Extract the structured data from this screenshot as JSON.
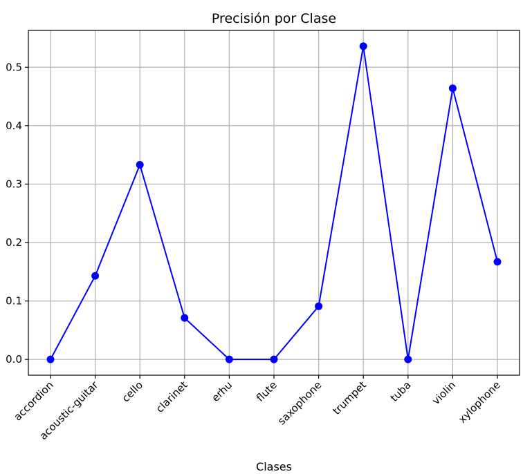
{
  "chart_data": {
    "type": "line",
    "title": "Precisión por Clase",
    "xlabel": "Clases",
    "ylabel": "",
    "categories": [
      "accordion",
      "acoustic-guitar",
      "cello",
      "clarinet",
      "erhu",
      "flute",
      "saxophone",
      "trumpet",
      "tuba",
      "violin",
      "xylophone"
    ],
    "series": [
      {
        "values": [
          0.0,
          0.143,
          0.333,
          0.071,
          0.0,
          0.0,
          0.091,
          0.536,
          0.0,
          0.464,
          0.167
        ],
        "color": "#0000ff",
        "marker": "circle"
      }
    ],
    "ylim": [
      -0.027,
      0.563
    ],
    "yticks": [
      0.0,
      0.1,
      0.2,
      0.3,
      0.4,
      0.5
    ],
    "ytick_labels": [
      "0.0",
      "0.1",
      "0.2",
      "0.3",
      "0.4",
      "0.5"
    ],
    "grid": true,
    "legend": "none"
  }
}
